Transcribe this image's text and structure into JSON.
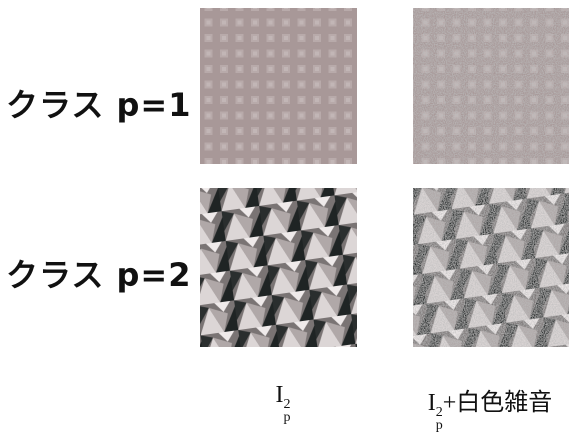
{
  "rows": [
    {
      "label": "クラス p=1"
    },
    {
      "label": "クラス p=2"
    }
  ],
  "columns": [
    {
      "base": "I",
      "sub": "p",
      "sup": "2"
    },
    {
      "base": "I",
      "sub": "p",
      "sup": "2",
      "suffix": "+白色雑音"
    }
  ]
}
